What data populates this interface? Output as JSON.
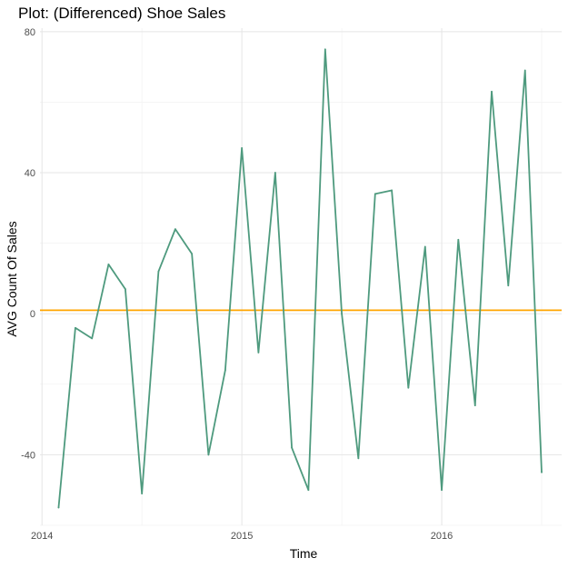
{
  "chart_data": {
    "type": "line",
    "title": "Plot: (Differenced) Shoe Sales",
    "xlabel": "Time",
    "ylabel": "AVG Count Of Sales",
    "xlim": [
      2013.99,
      2016.6
    ],
    "ylim": [
      -60,
      81
    ],
    "x_ticks": [
      {
        "value": 2014,
        "label": "2014"
      },
      {
        "value": 2015,
        "label": "2015"
      },
      {
        "value": 2016,
        "label": "2016"
      }
    ],
    "y_ticks": [
      {
        "value": 80,
        "label": "80"
      },
      {
        "value": 40,
        "label": "40"
      },
      {
        "value": 0,
        "label": "0"
      },
      {
        "value": -40,
        "label": "-40"
      }
    ],
    "grid": true,
    "reference_line": {
      "y": 1,
      "color": "#FFA500"
    },
    "series": [
      {
        "color": "#4E9A7E",
        "x": [
          2014.083,
          2014.167,
          2014.25,
          2014.333,
          2014.417,
          2014.5,
          2014.583,
          2014.667,
          2014.75,
          2014.833,
          2014.917,
          2015.0,
          2015.083,
          2015.167,
          2015.25,
          2015.333,
          2015.417,
          2015.5,
          2015.583,
          2015.667,
          2015.75,
          2015.833,
          2015.917,
          2016.0,
          2016.083,
          2016.167,
          2016.25,
          2016.333,
          2016.417,
          2016.5
        ],
        "values": [
          -55,
          -4,
          -7,
          14,
          7,
          -51,
          12,
          24,
          17,
          -40,
          -16,
          47,
          -11,
          40,
          -38,
          -50,
          75,
          0,
          -41,
          34,
          35,
          -21,
          19,
          -50,
          21,
          -26,
          63,
          8,
          69,
          -45
        ]
      }
    ]
  }
}
